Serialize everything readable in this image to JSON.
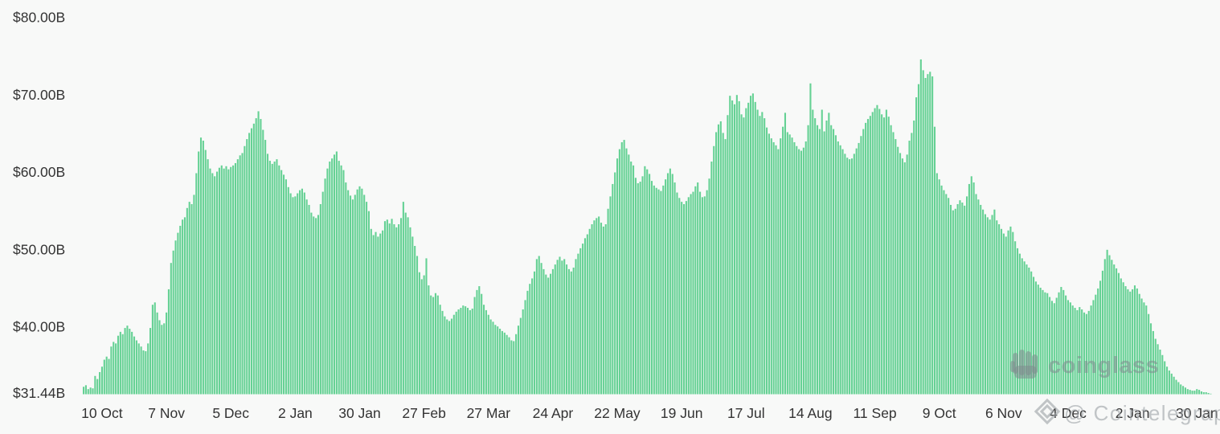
{
  "page": {
    "background": "#f8f9f8"
  },
  "chart_data": {
    "type": "bar",
    "title": "",
    "grid": false,
    "legend": false,
    "bar_color": "#65d194",
    "label_color": "#333333",
    "ylim": [
      31.44,
      80
    ],
    "y_axis": {
      "ticks": [
        {
          "label": "$80.00B",
          "value": 80
        },
        {
          "label": "$70.00B",
          "value": 70
        },
        {
          "label": "$60.00B",
          "value": 60
        },
        {
          "label": "$50.00B",
          "value": 50
        },
        {
          "label": "$40.00B",
          "value": 40
        },
        {
          "label": "$31.44B",
          "value": 31.44
        }
      ]
    },
    "x_axis": {
      "tick_labels": [
        "10 Oct",
        "7 Nov",
        "5 Dec",
        "2 Jan",
        "30 Jan",
        "27 Feb",
        "27 Mar",
        "24 Apr",
        "22 May",
        "19 Jun",
        "17 Jul",
        "14 Aug",
        "11 Sep",
        "9 Oct",
        "6 Nov",
        "4 Dec",
        "2 Jan",
        "30 Jan"
      ],
      "first_tick_day_index": 8,
      "tick_step_days": 28
    },
    "values": [
      32.4,
      32.6,
      32.1,
      32.3,
      32.2,
      33.8,
      33.4,
      34.3,
      35.0,
      35.9,
      36.3,
      36.0,
      37.6,
      38.2,
      38.0,
      39.0,
      39.5,
      39.2,
      40.0,
      40.3,
      39.9,
      39.5,
      38.9,
      38.4,
      38.0,
      37.6,
      37.1,
      37.0,
      38.0,
      40.0,
      43.0,
      43.3,
      42.0,
      41.0,
      40.4,
      40.6,
      42.0,
      45.0,
      48.4,
      50.0,
      51.3,
      52.3,
      53.2,
      54.0,
      54.3,
      55.5,
      56.3,
      56.0,
      57.2,
      60.0,
      62.8,
      64.6,
      64.2,
      63.0,
      61.8,
      60.6,
      60.0,
      59.6,
      60.2,
      60.7,
      61.0,
      60.6,
      60.9,
      60.5,
      60.8,
      61.0,
      61.3,
      61.8,
      62.3,
      62.6,
      63.5,
      64.4,
      65.2,
      65.8,
      66.4,
      67.1,
      68.0,
      67.0,
      65.6,
      64.3,
      62.5,
      61.6,
      61.2,
      61.5,
      61.8,
      61.0,
      60.4,
      59.8,
      59.2,
      58.2,
      57.4,
      56.9,
      57.0,
      57.4,
      57.8,
      58.0,
      57.5,
      56.6,
      55.9,
      54.9,
      54.4,
      54.2,
      54.6,
      56.0,
      57.6,
      59.3,
      60.6,
      61.5,
      61.9,
      62.4,
      62.8,
      61.6,
      61.0,
      60.4,
      58.8,
      57.8,
      57.1,
      56.6,
      57.2,
      57.9,
      58.3,
      58.0,
      57.2,
      56.3,
      55.1,
      52.8,
      52.0,
      52.4,
      51.8,
      52.2,
      52.6,
      53.8,
      54.0,
      53.5,
      54.1,
      53.4,
      53.0,
      53.4,
      54.2,
      56.3,
      54.9,
      54.3,
      53.0,
      51.8,
      50.6,
      49.3,
      47.2,
      46.3,
      46.8,
      49.0,
      45.5,
      44.2,
      44.0,
      44.5,
      44.2,
      43.0,
      42.2,
      41.5,
      41.1,
      40.9,
      41.2,
      41.7,
      42.1,
      42.4,
      42.6,
      42.9,
      42.8,
      42.6,
      42.3,
      42.5,
      44.0,
      44.9,
      45.4,
      44.4,
      43.0,
      42.3,
      41.7,
      41.1,
      40.8,
      40.4,
      40.2,
      39.9,
      39.6,
      39.4,
      39.1,
      38.8,
      38.4,
      38.3,
      39.2,
      40.3,
      41.3,
      42.4,
      43.6,
      44.8,
      45.7,
      46.4,
      47.3,
      48.9,
      49.3,
      48.4,
      47.6,
      46.9,
      46.5,
      47.0,
      47.6,
      48.2,
      48.8,
      49.2,
      48.7,
      48.9,
      48.2,
      47.6,
      47.3,
      47.8,
      48.9,
      49.6,
      50.3,
      50.9,
      51.6,
      52.1,
      52.8,
      53.4,
      53.9,
      54.2,
      54.4,
      53.6,
      53.1,
      53.4,
      55.4,
      57.0,
      58.6,
      60.1,
      61.9,
      63.1,
      64.0,
      64.3,
      63.2,
      62.4,
      61.5,
      61.0,
      59.4,
      58.7,
      58.9,
      59.6,
      60.9,
      60.5,
      59.9,
      59.0,
      58.4,
      58.1,
      57.9,
      57.7,
      58.4,
      59.2,
      60.0,
      60.6,
      59.9,
      58.8,
      57.5,
      56.8,
      56.3,
      56.0,
      56.4,
      56.9,
      57.3,
      57.6,
      58.3,
      58.8,
      57.6,
      56.9,
      57.0,
      57.8,
      59.3,
      61.5,
      63.5,
      65.3,
      66.3,
      66.7,
      65.2,
      64.4,
      67.5,
      70.0,
      69.4,
      68.9,
      70.1,
      69.3,
      67.6,
      67.2,
      68.4,
      69.1,
      70.0,
      70.3,
      69.2,
      68.2,
      67.4,
      67.9,
      67.1,
      65.9,
      65.1,
      64.5,
      64.0,
      63.6,
      63.1,
      64.5,
      66.0,
      67.8,
      65.3,
      65.0,
      64.6,
      64.0,
      63.5,
      63.1,
      62.9,
      63.3,
      64.1,
      66.2,
      71.6,
      68.2,
      67.1,
      66.2,
      65.7,
      68.2,
      65.4,
      66.8,
      67.8,
      66.2,
      65.7,
      64.9,
      64.1,
      63.6,
      63.1,
      62.5,
      62.0,
      61.8,
      61.9,
      62.5,
      63.2,
      63.9,
      64.8,
      65.7,
      66.5,
      67.0,
      67.4,
      67.9,
      68.4,
      68.8,
      68.3,
      67.6,
      67.2,
      68.2,
      67.3,
      66.2,
      65.3,
      64.4,
      63.4,
      62.6,
      61.9,
      61.4,
      62.4,
      64.2,
      65.2,
      66.8,
      69.8,
      71.5,
      74.7,
      73.3,
      72.3,
      72.8,
      73.1,
      72.5,
      66.0,
      60.0,
      59.2,
      58.4,
      57.8,
      57.3,
      56.8,
      55.9,
      55.2,
      55.4,
      56.0,
      56.5,
      56.2,
      55.8,
      57.0,
      58.6,
      59.6,
      58.8,
      57.3,
      56.6,
      55.9,
      55.3,
      54.7,
      54.3,
      54.0,
      54.6,
      55.3,
      53.9,
      53.4,
      52.8,
      52.2,
      51.8,
      52.6,
      53.1,
      52.4,
      51.2,
      50.3,
      49.6,
      49.0,
      48.6,
      48.2,
      47.8,
      47.3,
      46.6,
      46.0,
      45.6,
      45.2,
      44.9,
      44.6,
      44.5,
      44.0,
      43.5,
      43.2,
      43.9,
      44.6,
      45.3,
      44.9,
      44.2,
      43.6,
      43.3,
      42.9,
      42.6,
      42.3,
      42.7,
      42.4,
      42.0,
      41.8,
      42.2,
      42.9,
      43.6,
      44.3,
      45.1,
      46.1,
      47.4,
      48.9,
      50.1,
      49.4,
      48.8,
      48.2,
      47.7,
      47.1,
      46.4,
      45.9,
      45.4,
      45.0,
      44.7,
      45.0,
      45.5,
      45.1,
      44.4,
      43.8,
      43.3,
      42.9,
      41.8,
      40.6,
      39.6,
      38.6,
      37.9,
      37.2,
      36.5,
      35.7,
      35.0,
      34.5,
      34.1,
      33.7,
      33.3,
      33.0,
      32.7,
      32.5,
      32.3,
      32.1,
      32.0,
      31.9,
      31.9,
      32.1,
      32.0,
      31.8,
      31.7,
      31.7,
      31.6,
      31.44
    ]
  },
  "watermarks": {
    "coinglass": {
      "label": "coinglass",
      "icon": "coinglass-fist-icon"
    },
    "cointelegraph": {
      "label": "@ Cointelegraph",
      "icon": "cointelegraph-diamond-icon"
    }
  }
}
